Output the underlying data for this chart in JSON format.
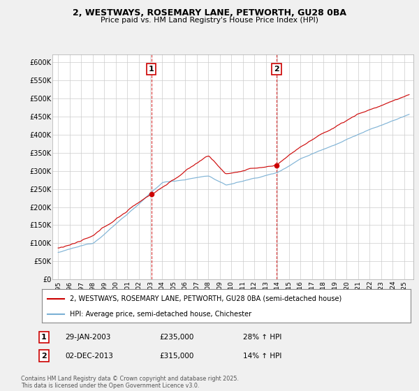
{
  "title_line1": "2, WESTWAYS, ROSEMARY LANE, PETWORTH, GU28 0BA",
  "title_line2": "Price paid vs. HM Land Registry's House Price Index (HPI)",
  "legend_label_red": "2, WESTWAYS, ROSEMARY LANE, PETWORTH, GU28 0BA (semi-detached house)",
  "legend_label_blue": "HPI: Average price, semi-detached house, Chichester",
  "point1_date": "29-JAN-2003",
  "point1_price": "£235,000",
  "point1_hpi": "28% ↑ HPI",
  "point2_date": "02-DEC-2013",
  "point2_price": "£315,000",
  "point2_hpi": "14% ↑ HPI",
  "footer": "Contains HM Land Registry data © Crown copyright and database right 2025.\nThis data is licensed under the Open Government Licence v3.0.",
  "red_color": "#cc0000",
  "blue_color": "#7ab0d4",
  "background_color": "#f0f0f0",
  "plot_background": "#ffffff",
  "grid_color": "#cccccc",
  "ylim": [
    0,
    620000
  ],
  "yticks": [
    0,
    50000,
    100000,
    150000,
    200000,
    250000,
    300000,
    350000,
    400000,
    450000,
    500000,
    550000,
    600000
  ],
  "ytick_labels": [
    "£0",
    "£50K",
    "£100K",
    "£150K",
    "£200K",
    "£250K",
    "£300K",
    "£350K",
    "£400K",
    "£450K",
    "£500K",
    "£550K",
    "£600K"
  ],
  "point1_x": 2003.08,
  "point1_y_red": 235000,
  "point2_x": 2013.92,
  "point2_y_red": 315000,
  "xmin": 1994.5,
  "xmax": 2025.8
}
